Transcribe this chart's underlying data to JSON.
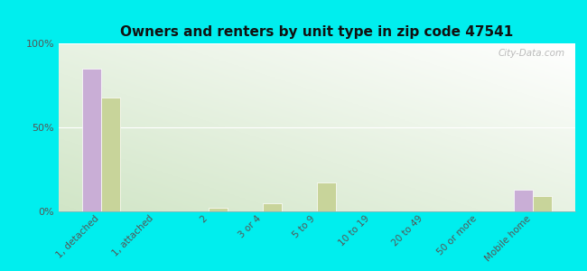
{
  "title": "Owners and renters by unit type in zip code 47541",
  "categories": [
    "1, detached",
    "1, attached",
    "2",
    "3 or 4",
    "5 to 9",
    "10 to 19",
    "20 to 49",
    "50 or more",
    "Mobile home"
  ],
  "owner_values": [
    85,
    0,
    0,
    0,
    0,
    0,
    0,
    0,
    13
  ],
  "renter_values": [
    68,
    0,
    2,
    5,
    17,
    0,
    0,
    0,
    9
  ],
  "owner_color": "#c9aed6",
  "renter_color": "#c8d49a",
  "background_color": "#00eeee",
  "ylim": [
    0,
    100
  ],
  "yticks": [
    0,
    50,
    100
  ],
  "ytick_labels": [
    "0%",
    "50%",
    "100%"
  ],
  "watermark": "City-Data.com",
  "bar_width": 0.35
}
